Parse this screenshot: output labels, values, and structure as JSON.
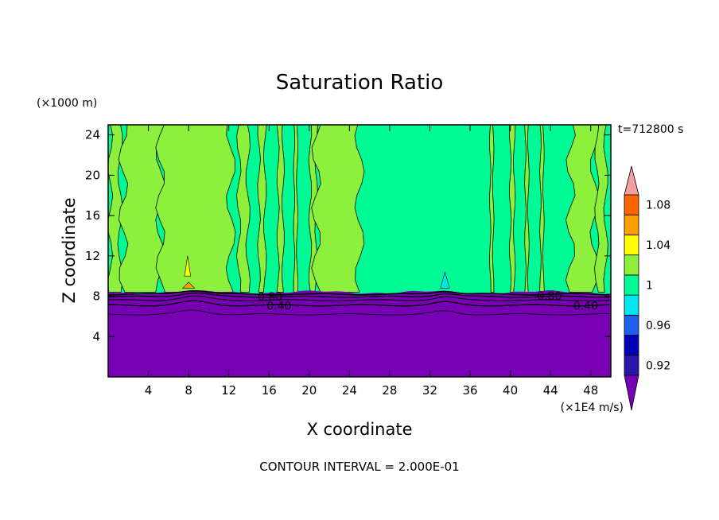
{
  "chart_data": {
    "type": "heatmap",
    "title": "Saturation Ratio",
    "xlabel": "X coordinate",
    "ylabel": "Z coordinate",
    "x_unit": "(×1E4 m/s)",
    "y_unit": "(×1000 m)",
    "time_label": "t=712800 s",
    "contour_interval_label": "CONTOUR INTERVAL = 2.000E-01",
    "xlim": [
      0,
      50
    ],
    "ylim": [
      0,
      25
    ],
    "x_ticks": [
      4,
      8,
      12,
      16,
      20,
      24,
      28,
      32,
      36,
      40,
      44,
      48
    ],
    "y_ticks": [
      4,
      8,
      12,
      16,
      20,
      24
    ],
    "contour_labels": [
      {
        "text": "0.80",
        "x": 16.1,
        "z": 7.95
      },
      {
        "text": "0.40",
        "x": 17.0,
        "z": 7.05
      },
      {
        "text": "0.80",
        "x": 43.9,
        "z": 8.05
      },
      {
        "text": "0.40",
        "x": 47.5,
        "z": 7.05
      }
    ],
    "colorbar": {
      "levels": [
        0.92,
        0.94,
        0.96,
        0.98,
        1.0,
        1.02,
        1.04,
        1.06,
        1.08,
        1.1
      ],
      "tick_labels": [
        "0.92",
        "0.96",
        "1",
        "1.04",
        "1.08"
      ],
      "tick_values": [
        0.92,
        0.96,
        1.0,
        1.04,
        1.08
      ],
      "colors": [
        "#2a16a8",
        "#0000b4",
        "#1e5ff0",
        "#00e6f0",
        "#00fa96",
        "#8cf03c",
        "#ffff00",
        "#ffa000",
        "#ff6400",
        "#ff2828",
        "#f5a0a0"
      ],
      "under_color": "#7800b4",
      "over_color": "#f5a0a0",
      "extend": "both"
    },
    "field": {
      "low_layer_color": "#7800b4",
      "moist_layer_color": "#00fa96",
      "supersat_color": "#8cf03c",
      "cloud_base_z": 8.4,
      "supersaturated_columns": [
        [
          0.2,
          1.2
        ],
        [
          1.5,
          5.2
        ],
        [
          5.2,
          12.2
        ],
        [
          13.0,
          13.9
        ],
        [
          15.0,
          15.6
        ],
        [
          16.9,
          17.4
        ],
        [
          18.5,
          18.8
        ],
        [
          20.1,
          20.7
        ],
        [
          20.7,
          25.0
        ],
        [
          38.0,
          38.3
        ],
        [
          40.0,
          40.4
        ],
        [
          41.5,
          41.8
        ],
        [
          43.0,
          43.3
        ],
        [
          46.0,
          48.4
        ],
        [
          48.6,
          49.5
        ]
      ],
      "supersat_patches": [
        {
          "x": 7.9,
          "z": 11.0,
          "w": 0.6,
          "h": 2.0,
          "color": "#ffff00"
        },
        {
          "x": 8.0,
          "z": 9.1,
          "w": 1.2,
          "h": 0.6,
          "color": "#ffa000"
        },
        {
          "x": 33.5,
          "z": 9.6,
          "w": 0.9,
          "h": 1.6,
          "color": "#00e6f0"
        }
      ]
    }
  }
}
